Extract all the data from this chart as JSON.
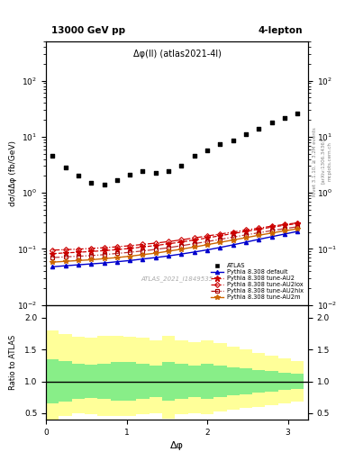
{
  "title_left": "13000 GeV pp",
  "title_right": "4-lepton",
  "plot_label": "Δφ(ll) (atlas2021-4l)",
  "watermark": "ATLAS_2021_I1849535",
  "rivet_text": "Rivet 3.1.10, ≥ 3.2M events",
  "arxiv_text": "[arXiv:1306.3436]",
  "mcplots_text": "mcplots.cern.ch",
  "ylabel_main": "dσ/dΔφ (fb/GeV)",
  "ylabel_ratio": "Ratio to ATLAS",
  "xlabel": "Δφ",
  "xlim": [
    0,
    3.25
  ],
  "ylim_main": [
    0.01,
    500
  ],
  "ylim_ratio": [
    0.4,
    2.2
  ],
  "atlas_x": [
    0.08,
    0.24,
    0.4,
    0.56,
    0.72,
    0.88,
    1.04,
    1.2,
    1.36,
    1.52,
    1.68,
    1.84,
    2.0,
    2.16,
    2.32,
    2.48,
    2.64,
    2.8,
    2.96,
    3.12
  ],
  "atlas_y": [
    4.5,
    2.8,
    2.0,
    1.5,
    1.4,
    1.7,
    2.1,
    2.4,
    2.3,
    2.4,
    3.1,
    4.5,
    5.8,
    7.5,
    8.5,
    11.0,
    14.0,
    18.0,
    22.0,
    26.0
  ],
  "mc_x": [
    0.08,
    0.24,
    0.4,
    0.56,
    0.72,
    0.88,
    1.04,
    1.2,
    1.36,
    1.52,
    1.68,
    1.84,
    2.0,
    2.16,
    2.32,
    2.48,
    2.64,
    2.8,
    2.96,
    3.12
  ],
  "mc_default_y": [
    0.048,
    0.05,
    0.052,
    0.054,
    0.056,
    0.059,
    0.062,
    0.066,
    0.07,
    0.075,
    0.081,
    0.088,
    0.096,
    0.106,
    0.118,
    0.132,
    0.148,
    0.165,
    0.184,
    0.205
  ],
  "mc_au2_y": [
    0.082,
    0.085,
    0.087,
    0.09,
    0.093,
    0.097,
    0.102,
    0.108,
    0.115,
    0.123,
    0.133,
    0.144,
    0.157,
    0.172,
    0.188,
    0.205,
    0.224,
    0.244,
    0.264,
    0.283
  ],
  "mc_au2lox_y": [
    0.095,
    0.097,
    0.099,
    0.102,
    0.105,
    0.109,
    0.114,
    0.12,
    0.127,
    0.135,
    0.145,
    0.157,
    0.17,
    0.184,
    0.2,
    0.217,
    0.235,
    0.254,
    0.273,
    0.291
  ],
  "mc_au2hix_y": [
    0.07,
    0.072,
    0.074,
    0.076,
    0.079,
    0.083,
    0.087,
    0.092,
    0.098,
    0.105,
    0.114,
    0.124,
    0.135,
    0.148,
    0.162,
    0.178,
    0.194,
    0.212,
    0.23,
    0.248
  ],
  "mc_au2m_y": [
    0.058,
    0.06,
    0.062,
    0.064,
    0.067,
    0.07,
    0.074,
    0.079,
    0.084,
    0.091,
    0.099,
    0.108,
    0.119,
    0.131,
    0.144,
    0.159,
    0.175,
    0.192,
    0.21,
    0.228
  ],
  "ratio_green_upper_x": [
    0.0,
    0.16,
    0.16,
    0.32,
    0.32,
    0.48,
    0.48,
    0.64,
    0.64,
    0.8,
    0.8,
    0.96,
    0.96,
    1.12,
    1.12,
    1.28,
    1.28,
    1.44,
    1.44,
    1.6,
    1.6,
    1.76,
    1.76,
    1.92,
    1.92,
    2.08,
    2.08,
    2.24,
    2.24,
    2.4,
    2.4,
    2.56,
    2.56,
    2.72,
    2.72,
    2.88,
    2.88,
    3.04,
    3.04,
    3.2
  ],
  "ratio_green_upper_y": [
    1.35,
    1.35,
    1.32,
    1.32,
    1.28,
    1.28,
    1.26,
    1.26,
    1.28,
    1.28,
    1.3,
    1.3,
    1.3,
    1.3,
    1.28,
    1.28,
    1.25,
    1.25,
    1.3,
    1.3,
    1.28,
    1.28,
    1.25,
    1.25,
    1.28,
    1.28,
    1.25,
    1.25,
    1.22,
    1.22,
    1.2,
    1.2,
    1.18,
    1.18,
    1.16,
    1.16,
    1.14,
    1.14,
    1.12,
    1.12
  ],
  "ratio_green_lower_y": [
    0.65,
    0.65,
    0.68,
    0.68,
    0.72,
    0.72,
    0.74,
    0.74,
    0.72,
    0.72,
    0.7,
    0.7,
    0.7,
    0.7,
    0.72,
    0.72,
    0.75,
    0.75,
    0.7,
    0.7,
    0.72,
    0.72,
    0.75,
    0.75,
    0.72,
    0.72,
    0.75,
    0.75,
    0.78,
    0.78,
    0.8,
    0.8,
    0.82,
    0.82,
    0.84,
    0.84,
    0.86,
    0.86,
    0.88,
    0.88
  ],
  "ratio_yellow_upper_y": [
    1.8,
    1.8,
    1.75,
    1.75,
    1.7,
    1.7,
    1.68,
    1.68,
    1.72,
    1.72,
    1.72,
    1.72,
    1.7,
    1.7,
    1.68,
    1.68,
    1.65,
    1.65,
    1.72,
    1.72,
    1.65,
    1.65,
    1.62,
    1.62,
    1.65,
    1.65,
    1.6,
    1.6,
    1.55,
    1.55,
    1.5,
    1.5,
    1.45,
    1.45,
    1.4,
    1.4,
    1.36,
    1.36,
    1.32,
    1.32
  ],
  "ratio_yellow_lower_y": [
    0.4,
    0.4,
    0.45,
    0.45,
    0.5,
    0.5,
    0.48,
    0.48,
    0.45,
    0.45,
    0.45,
    0.45,
    0.46,
    0.46,
    0.48,
    0.48,
    0.5,
    0.5,
    0.42,
    0.42,
    0.48,
    0.48,
    0.5,
    0.5,
    0.48,
    0.48,
    0.52,
    0.52,
    0.55,
    0.55,
    0.58,
    0.58,
    0.6,
    0.6,
    0.63,
    0.63,
    0.66,
    0.66,
    0.68,
    0.68
  ],
  "color_default": "#0000cc",
  "color_au2": "#cc0000",
  "color_au2lox": "#cc0000",
  "color_au2hix": "#cc0000",
  "color_au2m": "#cc6600",
  "color_atlas": "#000000",
  "color_green": "#88ee88",
  "color_yellow": "#ffff99",
  "legend_entries": [
    "ATLAS",
    "Pythia 8.308 default",
    "Pythia 8.308 tune-AU2",
    "Pythia 8.308 tune-AU2lox",
    "Pythia 8.308 tune-AU2hix",
    "Pythia 8.308 tune-AU2m"
  ]
}
